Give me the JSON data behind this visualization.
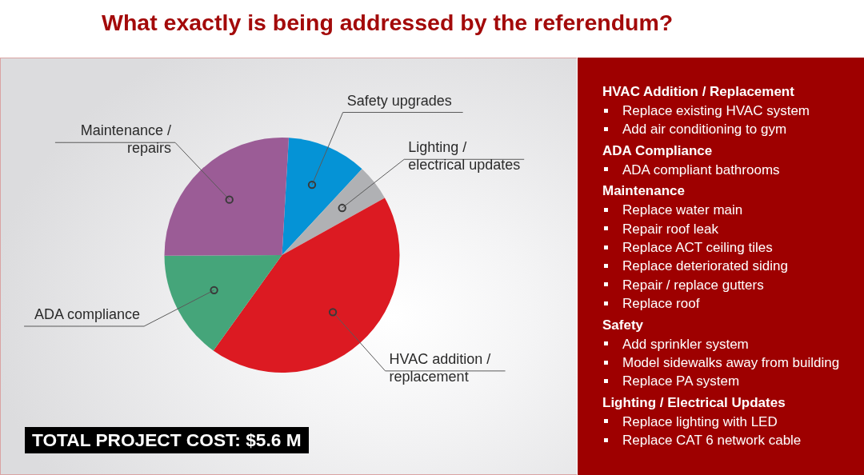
{
  "chart_data": [
    {
      "type": "pie",
      "title": "What exactly is being addressed by the referendum?",
      "categories": [
        "Safety upgrades",
        "Lighting / electrical updates",
        "HVAC addition / replacement",
        "ADA compliance",
        "Maintenance / repairs"
      ],
      "values": [
        11,
        5,
        43,
        15,
        26
      ],
      "colors": [
        "#0593d6",
        "#b0b1b4",
        "#dc1a22",
        "#45a57a",
        "#9b5c96"
      ],
      "annotations": [
        "TOTAL PROJECT COST: $5.6 M"
      ]
    },
    {
      "type": "other",
      "title": "HVAC Addition / Replacement",
      "annotations": [
        "Replace existing HVAC system",
        "Add air conditioning to gym"
      ]
    },
    {
      "type": "other",
      "title": "ADA Compliance",
      "annotations": [
        "ADA compliant bathrooms"
      ]
    },
    {
      "type": "other",
      "title": "Maintenance",
      "annotations": [
        "Replace water main",
        "Repair roof leak",
        "Replace ACT ceiling tiles",
        "Replace deteriorated siding",
        "Repair / replace gutters",
        "Replace roof"
      ]
    },
    {
      "type": "other",
      "title": "Safety",
      "annotations": [
        "Add sprinkler system",
        "Model sidewalks away from building",
        "Replace PA system"
      ]
    },
    {
      "type": "other",
      "title": "Lighting / Electrical Updates",
      "annotations": [
        "Replace lighting with LED",
        "Replace CAT 6 network cable"
      ]
    }
  ]
}
